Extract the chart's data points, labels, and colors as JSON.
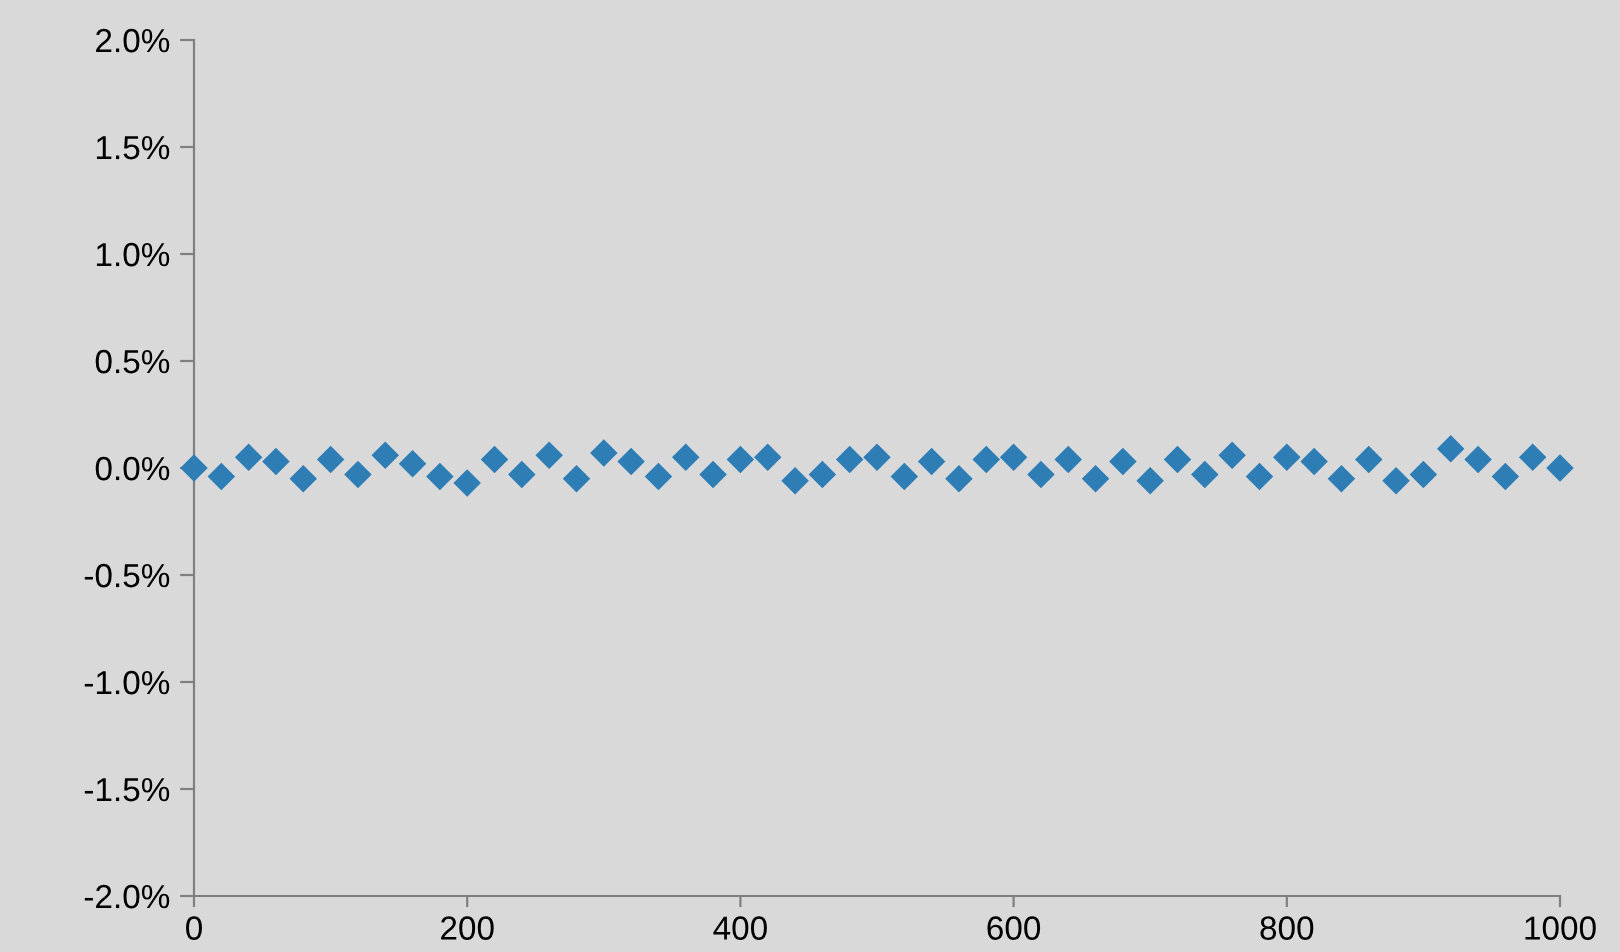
{
  "chart_data": {
    "type": "scatter",
    "marker": "diamond",
    "grid": false,
    "legend": false,
    "x": [
      0,
      20,
      40,
      60,
      80,
      100,
      120,
      140,
      160,
      180,
      200,
      220,
      240,
      260,
      280,
      300,
      320,
      340,
      360,
      380,
      400,
      420,
      440,
      460,
      480,
      500,
      520,
      540,
      560,
      580,
      600,
      620,
      640,
      660,
      680,
      700,
      720,
      740,
      760,
      780,
      800,
      820,
      840,
      860,
      880,
      900,
      920,
      940,
      960,
      980,
      1000
    ],
    "series": [
      {
        "color": "#2e7db5",
        "values": [
          0.0,
          -0.04,
          0.05,
          0.03,
          -0.05,
          0.04,
          -0.03,
          0.06,
          0.02,
          -0.04,
          -0.07,
          0.04,
          -0.03,
          0.06,
          -0.05,
          0.07,
          0.03,
          -0.04,
          0.05,
          -0.03,
          0.04,
          0.05,
          -0.06,
          -0.03,
          0.04,
          0.05,
          -0.04,
          0.03,
          -0.05,
          0.04,
          0.05,
          -0.03,
          0.04,
          -0.05,
          0.03,
          -0.06,
          0.04,
          -0.03,
          0.06,
          -0.04,
          0.05,
          0.03,
          -0.05,
          0.04,
          -0.06,
          -0.03,
          0.09,
          0.04,
          -0.04,
          0.05,
          0.0
        ]
      }
    ],
    "xlim": [
      0,
      1000
    ],
    "xticks": [
      0,
      200,
      400,
      600,
      800,
      1000
    ],
    "ylim": [
      -2,
      2
    ],
    "yticks": [
      {
        "value": -2,
        "label": "-2.0%"
      },
      {
        "value": -1.5,
        "label": "-1.5%"
      },
      {
        "value": -1,
        "label": "-1.0%"
      },
      {
        "value": -0.5,
        "label": "-0.5%"
      },
      {
        "value": 0,
        "label": "0.0%"
      },
      {
        "value": 0.5,
        "label": "0.5%"
      },
      {
        "value": 1,
        "label": "1.0%"
      },
      {
        "value": 1.5,
        "label": "1.5%"
      },
      {
        "value": 2,
        "label": "2.0%"
      }
    ]
  }
}
